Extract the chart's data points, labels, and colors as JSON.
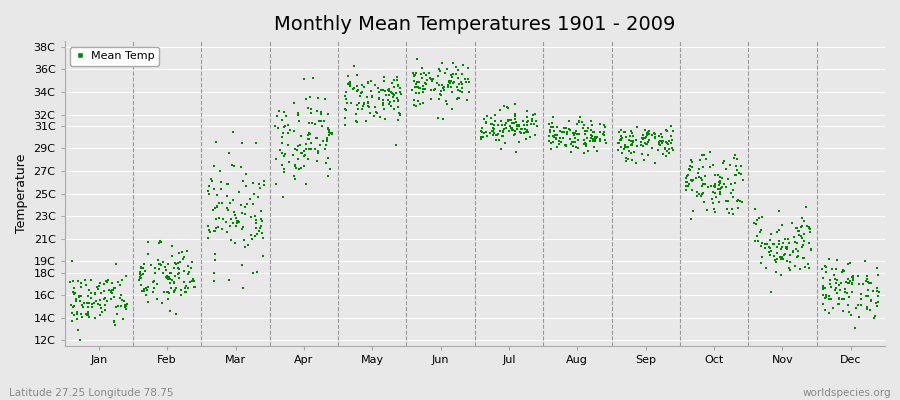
{
  "title": "Monthly Mean Temperatures 1901 - 2009",
  "ylabel": "Temperature",
  "xlabel_months": [
    "Jan",
    "Feb",
    "Mar",
    "Apr",
    "May",
    "Jun",
    "Jul",
    "Aug",
    "Sep",
    "Oct",
    "Nov",
    "Dec"
  ],
  "subtitle_left": "Latitude 27.25 Longitude 78.75",
  "subtitle_right": "worldspecies.org",
  "legend_label": "Mean Temp",
  "dot_color": "#008800",
  "background_color": "#e8e8e8",
  "ytick_labels": [
    "12C",
    "14C",
    "16C",
    "18C",
    "19C",
    "21C",
    "23C",
    "25C",
    "27C",
    "29C",
    "31C",
    "32C",
    "34C",
    "36C",
    "38C"
  ],
  "ytick_values": [
    12,
    14,
    16,
    18,
    19,
    21,
    23,
    25,
    27,
    29,
    31,
    32,
    34,
    36,
    38
  ],
  "ylim": [
    11.5,
    38.5
  ],
  "n_years": 109,
  "monthly_mean": [
    15.5,
    17.5,
    23.5,
    30.0,
    33.5,
    34.5,
    31.0,
    30.0,
    29.5,
    26.0,
    20.5,
    16.5
  ],
  "monthly_std": [
    1.3,
    1.5,
    2.5,
    2.0,
    1.2,
    1.0,
    0.8,
    0.7,
    0.8,
    1.5,
    1.5,
    1.3
  ],
  "title_fontsize": 14,
  "axis_fontsize": 9,
  "tick_fontsize": 8,
  "figsize": [
    9.0,
    4.0
  ],
  "dpi": 100,
  "vline_color": "#999999",
  "grid_color": "#ffffff",
  "spine_color": "#aaaaaa",
  "subtitle_color": "#888888"
}
